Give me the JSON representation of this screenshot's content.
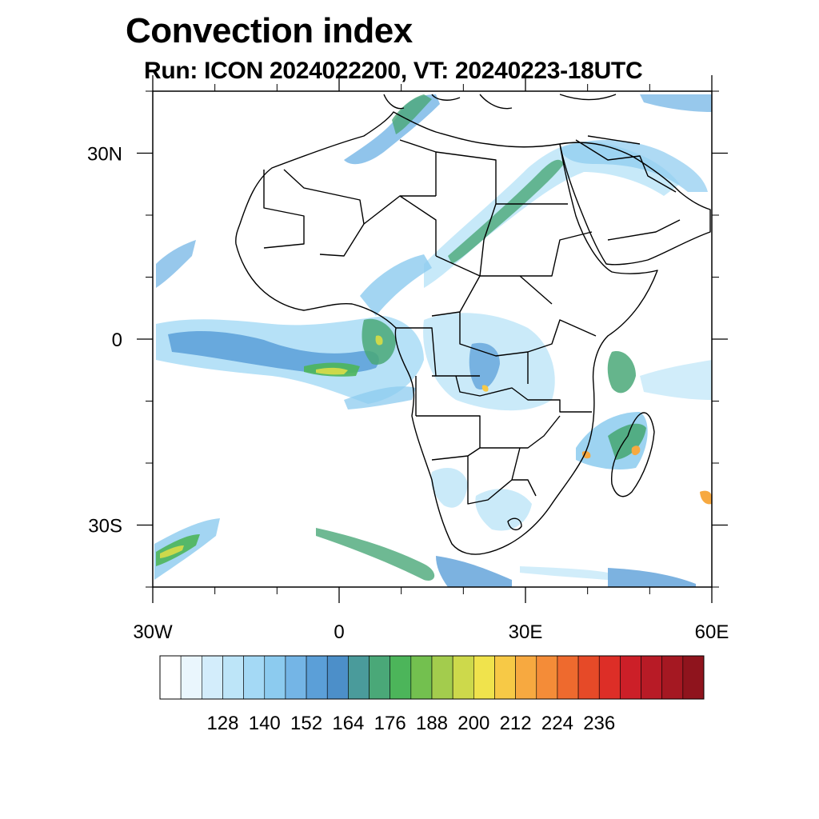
{
  "title": "Convection index",
  "subtitle": "Run: ICON 2024022200,  VT: 20240223-18UTC",
  "map": {
    "lon_range": [
      -30,
      60
    ],
    "lat_range": [
      -40,
      40
    ],
    "lat_ticks": [
      {
        "value": 30,
        "label": "30N"
      },
      {
        "value": 0,
        "label": "0"
      },
      {
        "value": -30,
        "label": "30S"
      }
    ],
    "lon_ticks": [
      {
        "value": -30,
        "label": "30W"
      },
      {
        "value": 0,
        "label": "0"
      },
      {
        "value": 30,
        "label": "30E"
      },
      {
        "value": 60,
        "label": "60E"
      }
    ]
  },
  "colorbar": {
    "colors": [
      "#ffffff",
      "#eaf6fd",
      "#d3edfb",
      "#bde5f8",
      "#a4d9f5",
      "#8ccbef",
      "#74b5e6",
      "#5b9fd8",
      "#4c8fc9",
      "#4a9b9b",
      "#4aa878",
      "#4cb55a",
      "#73c04f",
      "#a3cc4d",
      "#cdd94b",
      "#f0e34c",
      "#f7c946",
      "#f7a940",
      "#f48c38",
      "#ee6a2e",
      "#e64a28",
      "#dd2e27",
      "#cc1f28",
      "#b81b26",
      "#a51822",
      "#8f141d"
    ],
    "labels": [
      "128",
      "140",
      "152",
      "164",
      "176",
      "188",
      "200",
      "212",
      "224",
      "236"
    ]
  }
}
